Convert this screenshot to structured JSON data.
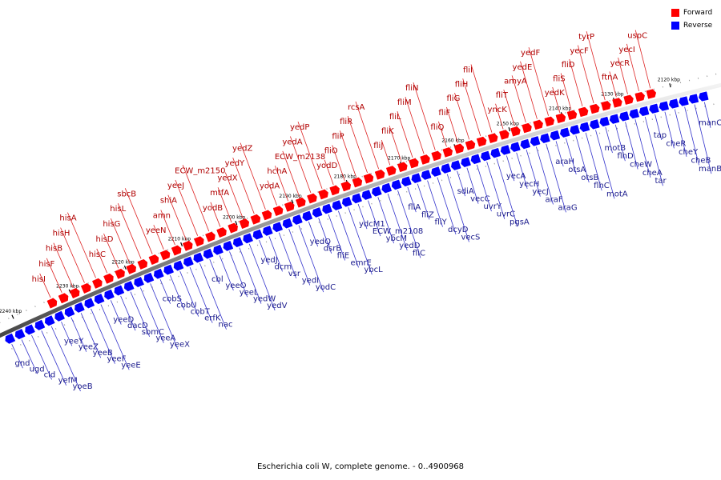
{
  "legend": {
    "forward": {
      "label": "Forward",
      "color": "#ff0000"
    },
    "reverse": {
      "label": "Reverse",
      "color": "#0000ff"
    }
  },
  "caption": "Escherichia coli W, complete genome. - 0..4900968",
  "ticks": [
    "2120 kbp",
    "2130 kbp",
    "2140 kbp",
    "2150 kbp",
    "2160 kbp",
    "2170 kbp",
    "2180 kbp",
    "2190 kbp",
    "2200 kbp",
    "2210 kbp",
    "2220 kbp",
    "2230 kbp",
    "2240 kbp"
  ],
  "genes_reverse": [
    "gnd",
    "ugd",
    "cld",
    "yefM",
    "yoeB",
    "yeeY",
    "yeeZ",
    "yeeB",
    "yeeF",
    "yeeE",
    "yeeD",
    "dacD",
    "sbmC",
    "yeeA",
    "yeeX",
    "cobS",
    "cobU",
    "cobT",
    "erfK",
    "nac",
    "cbl",
    "yeeO",
    "yeeL",
    "yedW",
    "yedV",
    "yedJ",
    "dcm",
    "vsr",
    "yedI",
    "yodC",
    "yedQ",
    "dsrB",
    "fliE",
    "emrE",
    "ybcL",
    "ydcM1",
    "ECW_m2108",
    "ybcM",
    "yedD",
    "fliC",
    "fliA",
    "fliZ",
    "fliY",
    "dcyD",
    "vecS",
    "sdiA",
    "vecC",
    "uvrY",
    "uvrC",
    "pgsA",
    "yecA",
    "yecH",
    "yecJ",
    "araF",
    "araG",
    "araH",
    "otsA",
    "otsB",
    "flhC",
    "motA",
    "motB",
    "flhD",
    "cheW",
    "cheA",
    "tar",
    "tap",
    "cheR",
    "cheY",
    "cheB",
    "manB",
    "manC"
  ],
  "genes_forward": [
    "hisI",
    "hisF",
    "hisB",
    "hisH",
    "hisA",
    "hisC",
    "hisD",
    "hisG",
    "hisL",
    "sbcB",
    "yeeN",
    "amn",
    "shiA",
    "yeeJ",
    "ECW_m2150",
    "yodB",
    "mtfA",
    "yedX",
    "yedY",
    "yedZ",
    "yodA",
    "hchA",
    "ECW_m2138",
    "yedA",
    "yedP",
    "yodD",
    "fliO",
    "fliP",
    "fliR",
    "rcsA",
    "fliJ",
    "fliK",
    "fliL",
    "fliM",
    "fliN",
    "fliQ",
    "fliF",
    "fliG",
    "fliH",
    "fliI",
    "yncK",
    "fliT",
    "amyA",
    "yedE",
    "yedF",
    "yedK",
    "fliS",
    "fliD",
    "yecF",
    "tyrP",
    "ftnA",
    "yecR",
    "yecI",
    "uspC"
  ]
}
